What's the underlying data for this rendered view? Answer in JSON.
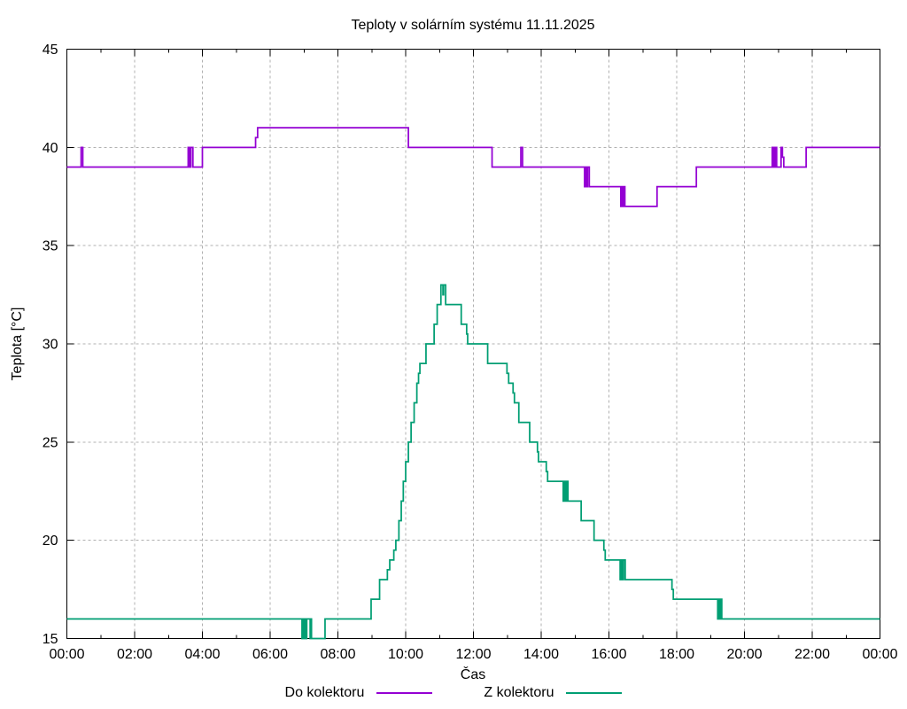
{
  "chart_data": {
    "type": "line",
    "title": "Teploty v solárním systému 11.11.2025",
    "xlabel": "Čas",
    "ylabel": "Teplota [°C]",
    "x_unit": "hours_since_midnight",
    "xlim": [
      0,
      24
    ],
    "ylim": [
      15,
      45
    ],
    "grid": true,
    "grid_style": {
      "color": "#b0b0b0",
      "dash": "3,3"
    },
    "legend_position": "bottom-center",
    "interpolation": "step-after",
    "x_ticks": [
      {
        "t": 0,
        "label": "00:00"
      },
      {
        "t": 2,
        "label": "02:00"
      },
      {
        "t": 4,
        "label": "04:00"
      },
      {
        "t": 6,
        "label": "06:00"
      },
      {
        "t": 8,
        "label": "08:00"
      },
      {
        "t": 10,
        "label": "10:00"
      },
      {
        "t": 12,
        "label": "12:00"
      },
      {
        "t": 14,
        "label": "14:00"
      },
      {
        "t": 16,
        "label": "16:00"
      },
      {
        "t": 18,
        "label": "18:00"
      },
      {
        "t": 20,
        "label": "20:00"
      },
      {
        "t": 22,
        "label": "22:00"
      },
      {
        "t": 24,
        "label": "00:00"
      }
    ],
    "x_minor_tick_every_hours": 1,
    "y_ticks": [
      {
        "v": 15,
        "label": "15"
      },
      {
        "v": 20,
        "label": "20"
      },
      {
        "v": 25,
        "label": "25"
      },
      {
        "v": 30,
        "label": "30"
      },
      {
        "v": 35,
        "label": "35"
      },
      {
        "v": 40,
        "label": "40"
      },
      {
        "v": 45,
        "label": "45"
      }
    ],
    "series": [
      {
        "name": "Do kolektoru",
        "color": "#9400d3",
        "points": [
          [
            0,
            39
          ],
          [
            0.42,
            40
          ],
          [
            0.47,
            39
          ],
          [
            3.58,
            40
          ],
          [
            3.62,
            39
          ],
          [
            3.66,
            40
          ],
          [
            3.72,
            39
          ],
          [
            4.0,
            40
          ],
          [
            5.57,
            40.5
          ],
          [
            5.63,
            41
          ],
          [
            10.08,
            40
          ],
          [
            12.55,
            39
          ],
          [
            13.4,
            40
          ],
          [
            13.45,
            39
          ],
          [
            15.28,
            38
          ],
          [
            15.31,
            39
          ],
          [
            15.34,
            38
          ],
          [
            15.37,
            39
          ],
          [
            15.42,
            38
          ],
          [
            16.35,
            37
          ],
          [
            16.38,
            38
          ],
          [
            16.41,
            37
          ],
          [
            16.44,
            38
          ],
          [
            16.47,
            37
          ],
          [
            17.42,
            38
          ],
          [
            18.58,
            39
          ],
          [
            20.82,
            40
          ],
          [
            20.84,
            39
          ],
          [
            20.86,
            40
          ],
          [
            20.89,
            39
          ],
          [
            20.92,
            40
          ],
          [
            20.95,
            39
          ],
          [
            21.08,
            40
          ],
          [
            21.12,
            39.5
          ],
          [
            21.16,
            39
          ],
          [
            21.82,
            40
          ],
          [
            24,
            40
          ]
        ]
      },
      {
        "name": "Z kolektoru",
        "color": "#009e73",
        "points": [
          [
            0,
            16
          ],
          [
            6.94,
            15
          ],
          [
            6.96,
            16
          ],
          [
            6.99,
            15
          ],
          [
            7.02,
            16
          ],
          [
            7.05,
            15
          ],
          [
            7.08,
            16
          ],
          [
            7.18,
            15
          ],
          [
            7.2,
            16
          ],
          [
            7.22,
            15
          ],
          [
            7.62,
            16
          ],
          [
            8.98,
            17
          ],
          [
            9.23,
            18
          ],
          [
            9.46,
            18.5
          ],
          [
            9.53,
            19
          ],
          [
            9.65,
            19.5
          ],
          [
            9.71,
            20
          ],
          [
            9.8,
            21
          ],
          [
            9.87,
            22
          ],
          [
            9.93,
            23
          ],
          [
            10.0,
            24
          ],
          [
            10.08,
            25
          ],
          [
            10.16,
            26
          ],
          [
            10.25,
            27
          ],
          [
            10.33,
            28
          ],
          [
            10.38,
            28.5
          ],
          [
            10.42,
            29
          ],
          [
            10.6,
            30
          ],
          [
            10.84,
            31
          ],
          [
            10.93,
            32
          ],
          [
            11.04,
            33
          ],
          [
            11.1,
            32.5
          ],
          [
            11.12,
            33
          ],
          [
            11.18,
            32
          ],
          [
            11.64,
            31
          ],
          [
            11.8,
            30.5
          ],
          [
            11.83,
            30
          ],
          [
            12.42,
            29
          ],
          [
            12.99,
            28.5
          ],
          [
            13.04,
            28
          ],
          [
            13.17,
            27.5
          ],
          [
            13.21,
            27
          ],
          [
            13.34,
            26
          ],
          [
            13.66,
            25
          ],
          [
            13.89,
            24.5
          ],
          [
            13.92,
            24
          ],
          [
            14.15,
            23.5
          ],
          [
            14.19,
            23
          ],
          [
            14.65,
            22
          ],
          [
            14.68,
            23
          ],
          [
            14.71,
            22
          ],
          [
            14.75,
            23
          ],
          [
            14.79,
            22
          ],
          [
            15.18,
            21
          ],
          [
            15.56,
            20
          ],
          [
            15.85,
            19.5
          ],
          [
            15.89,
            19
          ],
          [
            16.33,
            18
          ],
          [
            16.36,
            19
          ],
          [
            16.39,
            18
          ],
          [
            16.43,
            19
          ],
          [
            16.48,
            18
          ],
          [
            17.86,
            17.5
          ],
          [
            17.9,
            17
          ],
          [
            19.21,
            16
          ],
          [
            19.24,
            17
          ],
          [
            19.27,
            16
          ],
          [
            19.3,
            17
          ],
          [
            19.33,
            16
          ],
          [
            24,
            16
          ]
        ]
      }
    ]
  }
}
